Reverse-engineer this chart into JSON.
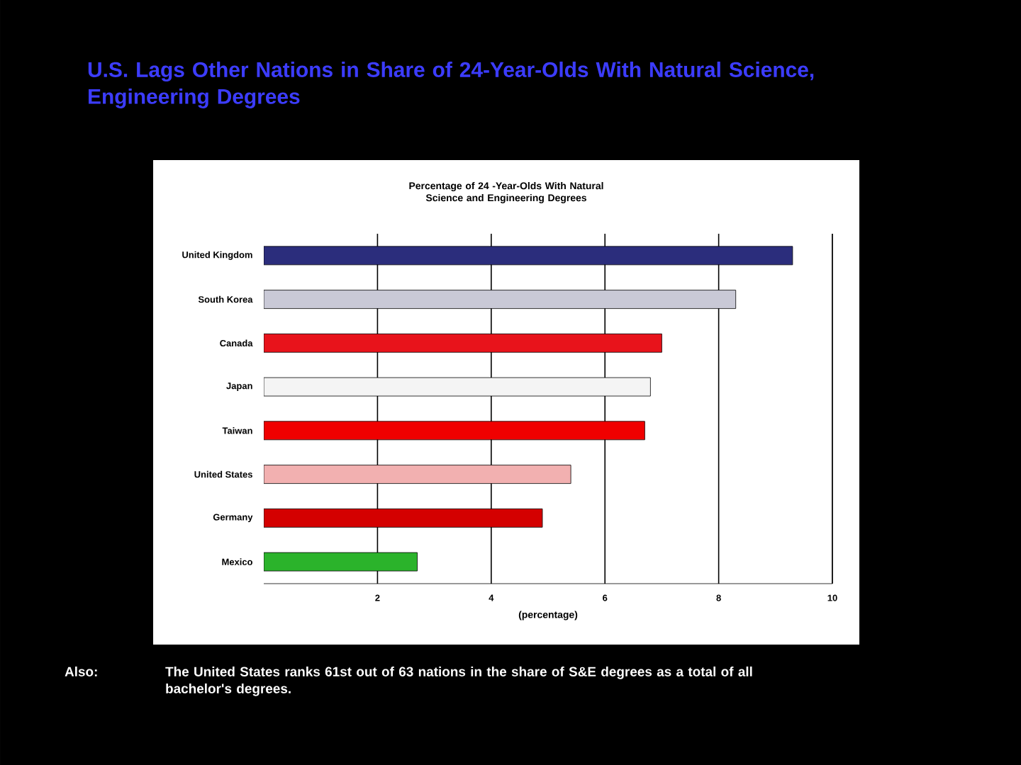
{
  "chart_data": {
    "type": "bar",
    "orientation": "horizontal",
    "title": "U.S. Lags Other Nations in Share of 24-Year-Olds With Natural Science, Engineering Degrees",
    "subtitle": "Percentage of 24 -Year-Olds With Natural Science and Engineering Degrees",
    "xlabel": "(percentage)",
    "categories": [
      "United Kingdom",
      "South Korea",
      "Canada",
      "Japan",
      "Taiwan",
      "United States",
      "Germany",
      "Mexico"
    ],
    "values": [
      9.3,
      8.3,
      7.0,
      6.8,
      6.7,
      5.4,
      4.9,
      2.7
    ],
    "colors": [
      "#2b2d7c",
      "#c9c9d6",
      "#e8131b",
      "#f4f4f4",
      "#f00000",
      "#f2b0b0",
      "#d40000",
      "#2bb32b"
    ],
    "xlim": [
      0,
      10
    ],
    "xticks": [
      2,
      4,
      6,
      8,
      10
    ],
    "grid": "x",
    "annotations": [
      "Also:",
      "The United States ranks 61st out of 63 nations in the share of S&E degrees as a total of all bachelor's degrees."
    ]
  }
}
